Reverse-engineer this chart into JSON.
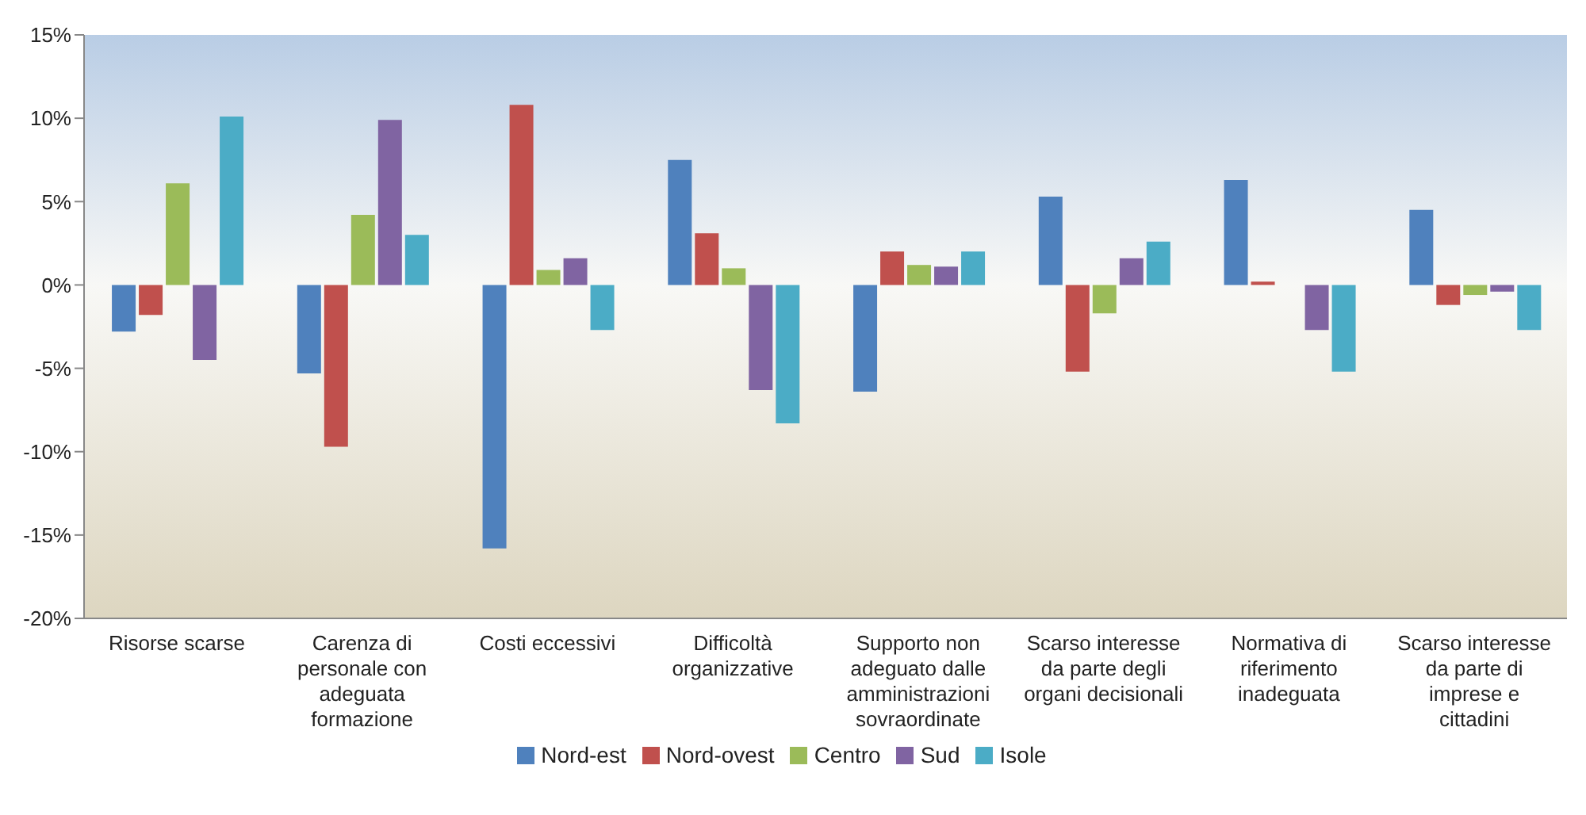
{
  "chart_data": {
    "type": "bar",
    "categories": [
      "Risorse scarse",
      "Carenza di personale con adeguata formazione",
      "Costi eccessivi",
      "Difficoltà organizzative",
      "Supporto non adeguato dalle amministrazioni sovraordinate",
      "Scarso interesse da parte degli organi decisionali",
      "Normativa di riferimento inadeguata",
      "Scarso interesse da parte di imprese e cittadini"
    ],
    "series": [
      {
        "name": "Nord-est",
        "color": "#4f81bd",
        "values": [
          -2.8,
          -5.3,
          -15.8,
          7.5,
          -6.4,
          5.3,
          6.3,
          4.5
        ]
      },
      {
        "name": "Nord-ovest",
        "color": "#c0504d",
        "values": [
          -1.8,
          -9.7,
          10.8,
          3.1,
          2.0,
          -5.2,
          0.2,
          -1.2
        ]
      },
      {
        "name": "Centro",
        "color": "#9bbb59",
        "values": [
          6.1,
          4.2,
          0.9,
          1.0,
          1.2,
          -1.7,
          0,
          -0.6
        ]
      },
      {
        "name": "Sud",
        "color": "#8064a2",
        "values": [
          -4.5,
          9.9,
          1.6,
          -6.3,
          1.1,
          1.6,
          -2.7,
          -0.4
        ]
      },
      {
        "name": "Isole",
        "color": "#4bacc6",
        "values": [
          10.1,
          3.0,
          -2.7,
          -8.3,
          2.0,
          2.6,
          -5.2,
          -2.7
        ]
      }
    ],
    "ylim": [
      -20,
      15
    ],
    "yticks": [
      {
        "value": -20,
        "label": "-20%"
      },
      {
        "value": -15,
        "label": "-15%"
      },
      {
        "value": -10,
        "label": "-10%"
      },
      {
        "value": -5,
        "label": "-5%"
      },
      {
        "value": 0,
        "label": "0%"
      },
      {
        "value": 5,
        "label": "5%"
      },
      {
        "value": 10,
        "label": "10%"
      },
      {
        "value": 15,
        "label": "15%"
      }
    ],
    "grid": false,
    "legend": "bottom"
  }
}
